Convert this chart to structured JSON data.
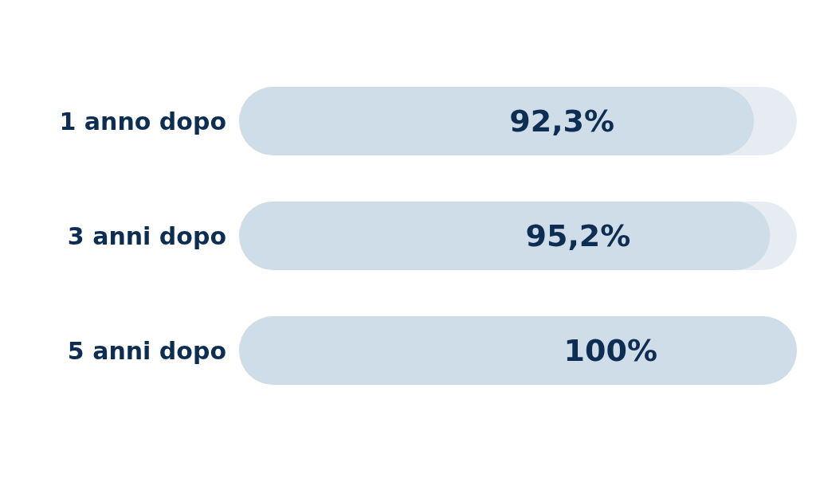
{
  "chart_data": {
    "type": "bar",
    "orientation": "horizontal",
    "categories": [
      "1 anno dopo",
      "3 anni dopo",
      "5 anni dopo"
    ],
    "values": [
      92.3,
      95.2,
      100
    ],
    "value_labels": [
      "92,3%",
      "95,2%",
      "100%"
    ],
    "color": "#cfdde9"
  }
}
